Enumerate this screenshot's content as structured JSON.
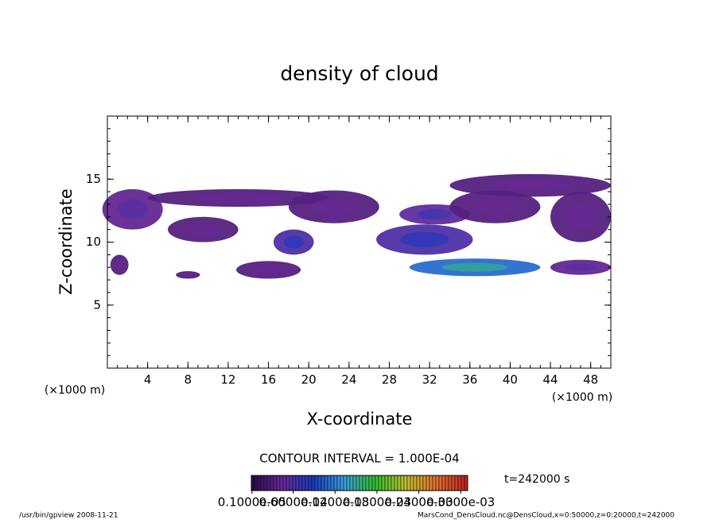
{
  "chart_data": {
    "type": "contour",
    "title": "density of cloud",
    "x_label": "X-coordinate",
    "y_label": "Z-coordinate",
    "x_unit": "(×1000 m)",
    "y_unit": "(×1000 m)",
    "xlim": [
      0,
      50
    ],
    "ylim": [
      0,
      20
    ],
    "xticks": [
      4,
      8,
      12,
      16,
      20,
      24,
      28,
      32,
      36,
      40,
      44,
      48
    ],
    "yticks": [
      5,
      10,
      15
    ],
    "blobs": {
      "x": [
        2.5,
        9.5,
        13,
        18.5,
        22.5,
        16,
        8,
        31.5,
        32.5,
        36.5,
        42,
        38.5,
        47,
        47,
        1.2
      ],
      "z": [
        12.6,
        11,
        13.5,
        10,
        12.8,
        7.8,
        7.4,
        10.2,
        12.2,
        8,
        14.5,
        12.8,
        12,
        8,
        8.2
      ],
      "rx": [
        3,
        3.5,
        9,
        2,
        4.5,
        3.2,
        1.2,
        4.8,
        3.5,
        6.5,
        8,
        4.5,
        3,
        3,
        0.9
      ],
      "rz": [
        1.6,
        1,
        0.7,
        1,
        1.3,
        0.7,
        0.3,
        1.2,
        0.8,
        0.7,
        0.9,
        1.3,
        2,
        0.6,
        0.8
      ],
      "values": [
        4e-05,
        3e-05,
        3e-05,
        6e-05,
        3e-05,
        3e-05,
        3e-05,
        6e-05,
        5e-05,
        0.00011,
        3e-05,
        3e-05,
        3e-05,
        4e-05,
        3e-05
      ]
    },
    "colormap": [
      "#2a0a4a",
      "#6a2a9a",
      "#1a3ac0",
      "#3aa0e0",
      "#30c030",
      "#c0c030",
      "#e07030",
      "#c02020"
    ],
    "clim": [
      0,
      0.00031
    ],
    "contour_interval": "CONTOUR INTERVAL = 1.000E-04",
    "time": "t=242000 s",
    "colorbar_ticks": [
      {
        "value": 1e-06,
        "label": "0.1000e-05"
      },
      {
        "value": 6e-05,
        "label": "0.6000e-04"
      },
      {
        "value": 0.00012,
        "label": "0.1200e-03"
      },
      {
        "value": 0.00018,
        "label": "0.1800e-03"
      },
      {
        "value": 0.00024,
        "label": "0.2400e-03"
      },
      {
        "value": 0.0003,
        "label": "0.3000e-03"
      }
    ],
    "footer_left": "/usr/bin/gpview  2008-11-21",
    "footer_right": "MarsCond_DensCloud.nc@DensCloud,x=0:50000,z=0:20000,t=242000"
  }
}
